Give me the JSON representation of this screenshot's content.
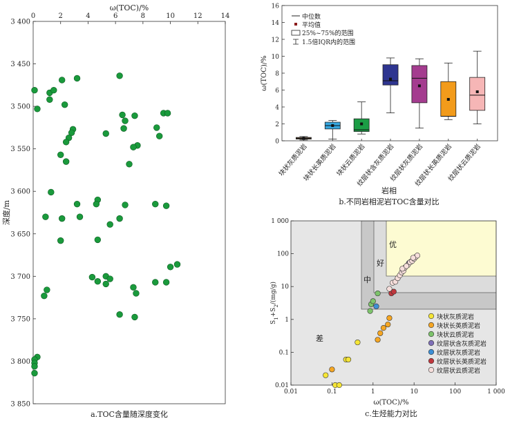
{
  "chart_data": [
    {
      "id": "a",
      "type": "scatter",
      "caption": "a.TOC含量随深度变化",
      "xlabel": "ω(TOC)/%",
      "ylabel": "深度/m",
      "xlim": [
        0,
        14
      ],
      "ylim": [
        3400,
        3850
      ],
      "xticks": [
        "0",
        "2",
        "4",
        "6",
        "8",
        "10",
        "12",
        "14"
      ],
      "yticks": [
        "3 400",
        "3 450",
        "3 500",
        "3 550",
        "3 600",
        "3 650",
        "3 700",
        "3 750",
        "3 800",
        "3 850"
      ],
      "x_axis_position": "top",
      "y_reversed": true,
      "marker_color": "#1a9a3c",
      "points": [
        [
          0.1,
          3481
        ],
        [
          0.3,
          3503
        ],
        [
          1.2,
          3484
        ],
        [
          1.5,
          3481
        ],
        [
          1.2,
          3492
        ],
        [
          2.1,
          3469
        ],
        [
          3.2,
          3467
        ],
        [
          2.3,
          3498
        ],
        [
          6.3,
          3464
        ],
        [
          6.5,
          3510
        ],
        [
          6.7,
          3517
        ],
        [
          7.4,
          3511
        ],
        [
          9.5,
          3508
        ],
        [
          9.8,
          3508
        ],
        [
          6.6,
          3526
        ],
        [
          9.0,
          3525
        ],
        [
          2.9,
          3527
        ],
        [
          2.8,
          3531
        ],
        [
          2.6,
          3537
        ],
        [
          2.4,
          3542
        ],
        [
          5.3,
          3532
        ],
        [
          9.2,
          3535
        ],
        [
          7.6,
          3546
        ],
        [
          7.3,
          3548
        ],
        [
          2.0,
          3557
        ],
        [
          2.4,
          3565
        ],
        [
          7.0,
          3568
        ],
        [
          1.3,
          3601
        ],
        [
          4.7,
          3610
        ],
        [
          4.6,
          3615
        ],
        [
          3.2,
          3615
        ],
        [
          6.7,
          3616
        ],
        [
          8.9,
          3615
        ],
        [
          9.7,
          3617
        ],
        [
          2.1,
          3632
        ],
        [
          3.4,
          3630
        ],
        [
          0.9,
          3630
        ],
        [
          6.3,
          3632
        ],
        [
          5.6,
          3639
        ],
        [
          2.0,
          3658
        ],
        [
          4.7,
          3657
        ],
        [
          10.5,
          3686
        ],
        [
          10.0,
          3689
        ],
        [
          4.3,
          3701
        ],
        [
          5.3,
          3700
        ],
        [
          5.6,
          3703
        ],
        [
          4.7,
          3706
        ],
        [
          5.3,
          3709
        ],
        [
          9.7,
          3707
        ],
        [
          8.9,
          3707
        ],
        [
          7.3,
          3713
        ],
        [
          7.5,
          3720
        ],
        [
          1.0,
          3716
        ],
        [
          0.8,
          3723
        ],
        [
          6.3,
          3745
        ],
        [
          7.4,
          3748
        ],
        [
          0.1,
          3814
        ],
        [
          0.3,
          3795
        ],
        [
          0.1,
          3798
        ],
        [
          0.1,
          3802
        ],
        [
          0.1,
          3806
        ]
      ]
    },
    {
      "id": "b",
      "type": "boxplot",
      "caption": "b.不同岩相泥岩TOC含量对比",
      "xlabel": "岩相",
      "ylabel": "ω(TOC)/%",
      "ylim": [
        0,
        16
      ],
      "yticks": [
        "0",
        "2",
        "4",
        "6",
        "8",
        "10",
        "12",
        "14",
        "16"
      ],
      "legend": [
        "中位数",
        "平均值",
        "25%~75%的范围",
        "1.5倍IQR内的范围"
      ],
      "categories": [
        "块状灰质泥岩",
        "块状长英质泥岩",
        "块状云质泥岩",
        "纹层状含灰质泥岩",
        "纹层状灰质泥岩",
        "纹层状长英质泥岩",
        "纹层状云质泥岩"
      ],
      "colors": [
        "#7f5a38",
        "#35a6df",
        "#1b9d45",
        "#2e3590",
        "#a43c8f",
        "#f29b1b",
        "#f6b6b6"
      ],
      "boxes": [
        {
          "min": 0.1,
          "q1": 0.2,
          "median": 0.3,
          "q3": 0.4,
          "max": 0.5,
          "mean": 0.3
        },
        {
          "min": 0.2,
          "q1": 1.4,
          "median": 1.8,
          "q3": 2.2,
          "max": 2.4,
          "mean": 1.8
        },
        {
          "min": 0.8,
          "q1": 1.1,
          "median": 1.3,
          "q3": 2.6,
          "max": 4.6,
          "mean": 2.0
        },
        {
          "min": 3.3,
          "q1": 6.6,
          "median": 7.1,
          "q3": 9.0,
          "max": 9.8,
          "mean": 7.3
        },
        {
          "min": 1.5,
          "q1": 4.5,
          "median": 7.4,
          "q3": 8.9,
          "max": 9.7,
          "mean": 6.5
        },
        {
          "min": 2.5,
          "q1": 2.9,
          "median": 2.9,
          "q3": 7.0,
          "max": 9.2,
          "mean": 4.9
        },
        {
          "min": 2.0,
          "q1": 3.6,
          "median": 5.4,
          "q3": 7.5,
          "max": 10.6,
          "mean": 5.8
        }
      ]
    },
    {
      "id": "c",
      "type": "scatter",
      "caption": "c.生烃能力对比",
      "xlabel": "ω(TOC)/%",
      "ylabel": "S1+S2/(mg/g)",
      "scale": "log",
      "xlim": [
        0.01,
        1000
      ],
      "ylim": [
        0.01,
        1000
      ],
      "xticks": [
        "0.01",
        "0.1",
        "1",
        "10",
        "100",
        "1 000"
      ],
      "yticks": [
        "0.01",
        "0.1",
        "1",
        "10",
        "100",
        "1 000"
      ],
      "zones": [
        "差",
        "中",
        "好",
        "优"
      ],
      "legend_position": "bottom-right",
      "series": [
        {
          "name": "块状灰质泥岩",
          "color": "#f5e536",
          "points": [
            [
              0.07,
              0.02
            ],
            [
              0.12,
              0.01
            ],
            [
              0.15,
              0.01
            ],
            [
              0.22,
              0.06
            ],
            [
              0.25,
              0.06
            ],
            [
              0.42,
              0.2
            ]
          ]
        },
        {
          "name": "块状长英质泥岩",
          "color": "#f5a623",
          "points": [
            [
              0.1,
              0.03
            ],
            [
              1.3,
              0.24
            ],
            [
              1.5,
              0.38
            ],
            [
              1.8,
              0.55
            ],
            [
              2.3,
              0.7
            ],
            [
              2.5,
              1.1
            ]
          ]
        },
        {
          "name": "块状云质泥岩",
          "color": "#7dc36b",
          "points": [
            [
              0.85,
              1.8
            ],
            [
              0.9,
              2.9
            ],
            [
              1.0,
              3.6
            ],
            [
              1.3,
              6.2
            ]
          ]
        },
        {
          "name": "纹层状含灰质泥岩",
          "color": "#7f70b8",
          "points": [
            [
              7.5,
              52
            ],
            [
              8.5,
              58
            ]
          ]
        },
        {
          "name": "纹层状灰质泥岩",
          "color": "#3d8fd6",
          "points": [
            [
              1.2,
              2.5
            ]
          ]
        },
        {
          "name": "纹层状长英质泥岩",
          "color": "#c0373d",
          "points": [
            [
              2.8,
              6.2
            ],
            [
              3.2,
              7.0
            ]
          ]
        },
        {
          "name": "纹层状云质泥岩",
          "color": "#f6dedb",
          "points": [
            [
              2.5,
              8.5
            ],
            [
              3.0,
              13
            ],
            [
              3.5,
              14
            ],
            [
              4.0,
              18
            ],
            [
              4.5,
              22
            ],
            [
              5.0,
              27
            ],
            [
              5.5,
              30
            ],
            [
              6.0,
              38
            ],
            [
              7.0,
              45
            ],
            [
              8.0,
              55
            ],
            [
              9.0,
              60
            ],
            [
              10,
              70
            ],
            [
              11,
              80
            ],
            [
              12,
              88
            ],
            [
              5.2,
              35
            ],
            [
              6.5,
              42
            ],
            [
              9.5,
              75
            ]
          ]
        }
      ]
    }
  ]
}
